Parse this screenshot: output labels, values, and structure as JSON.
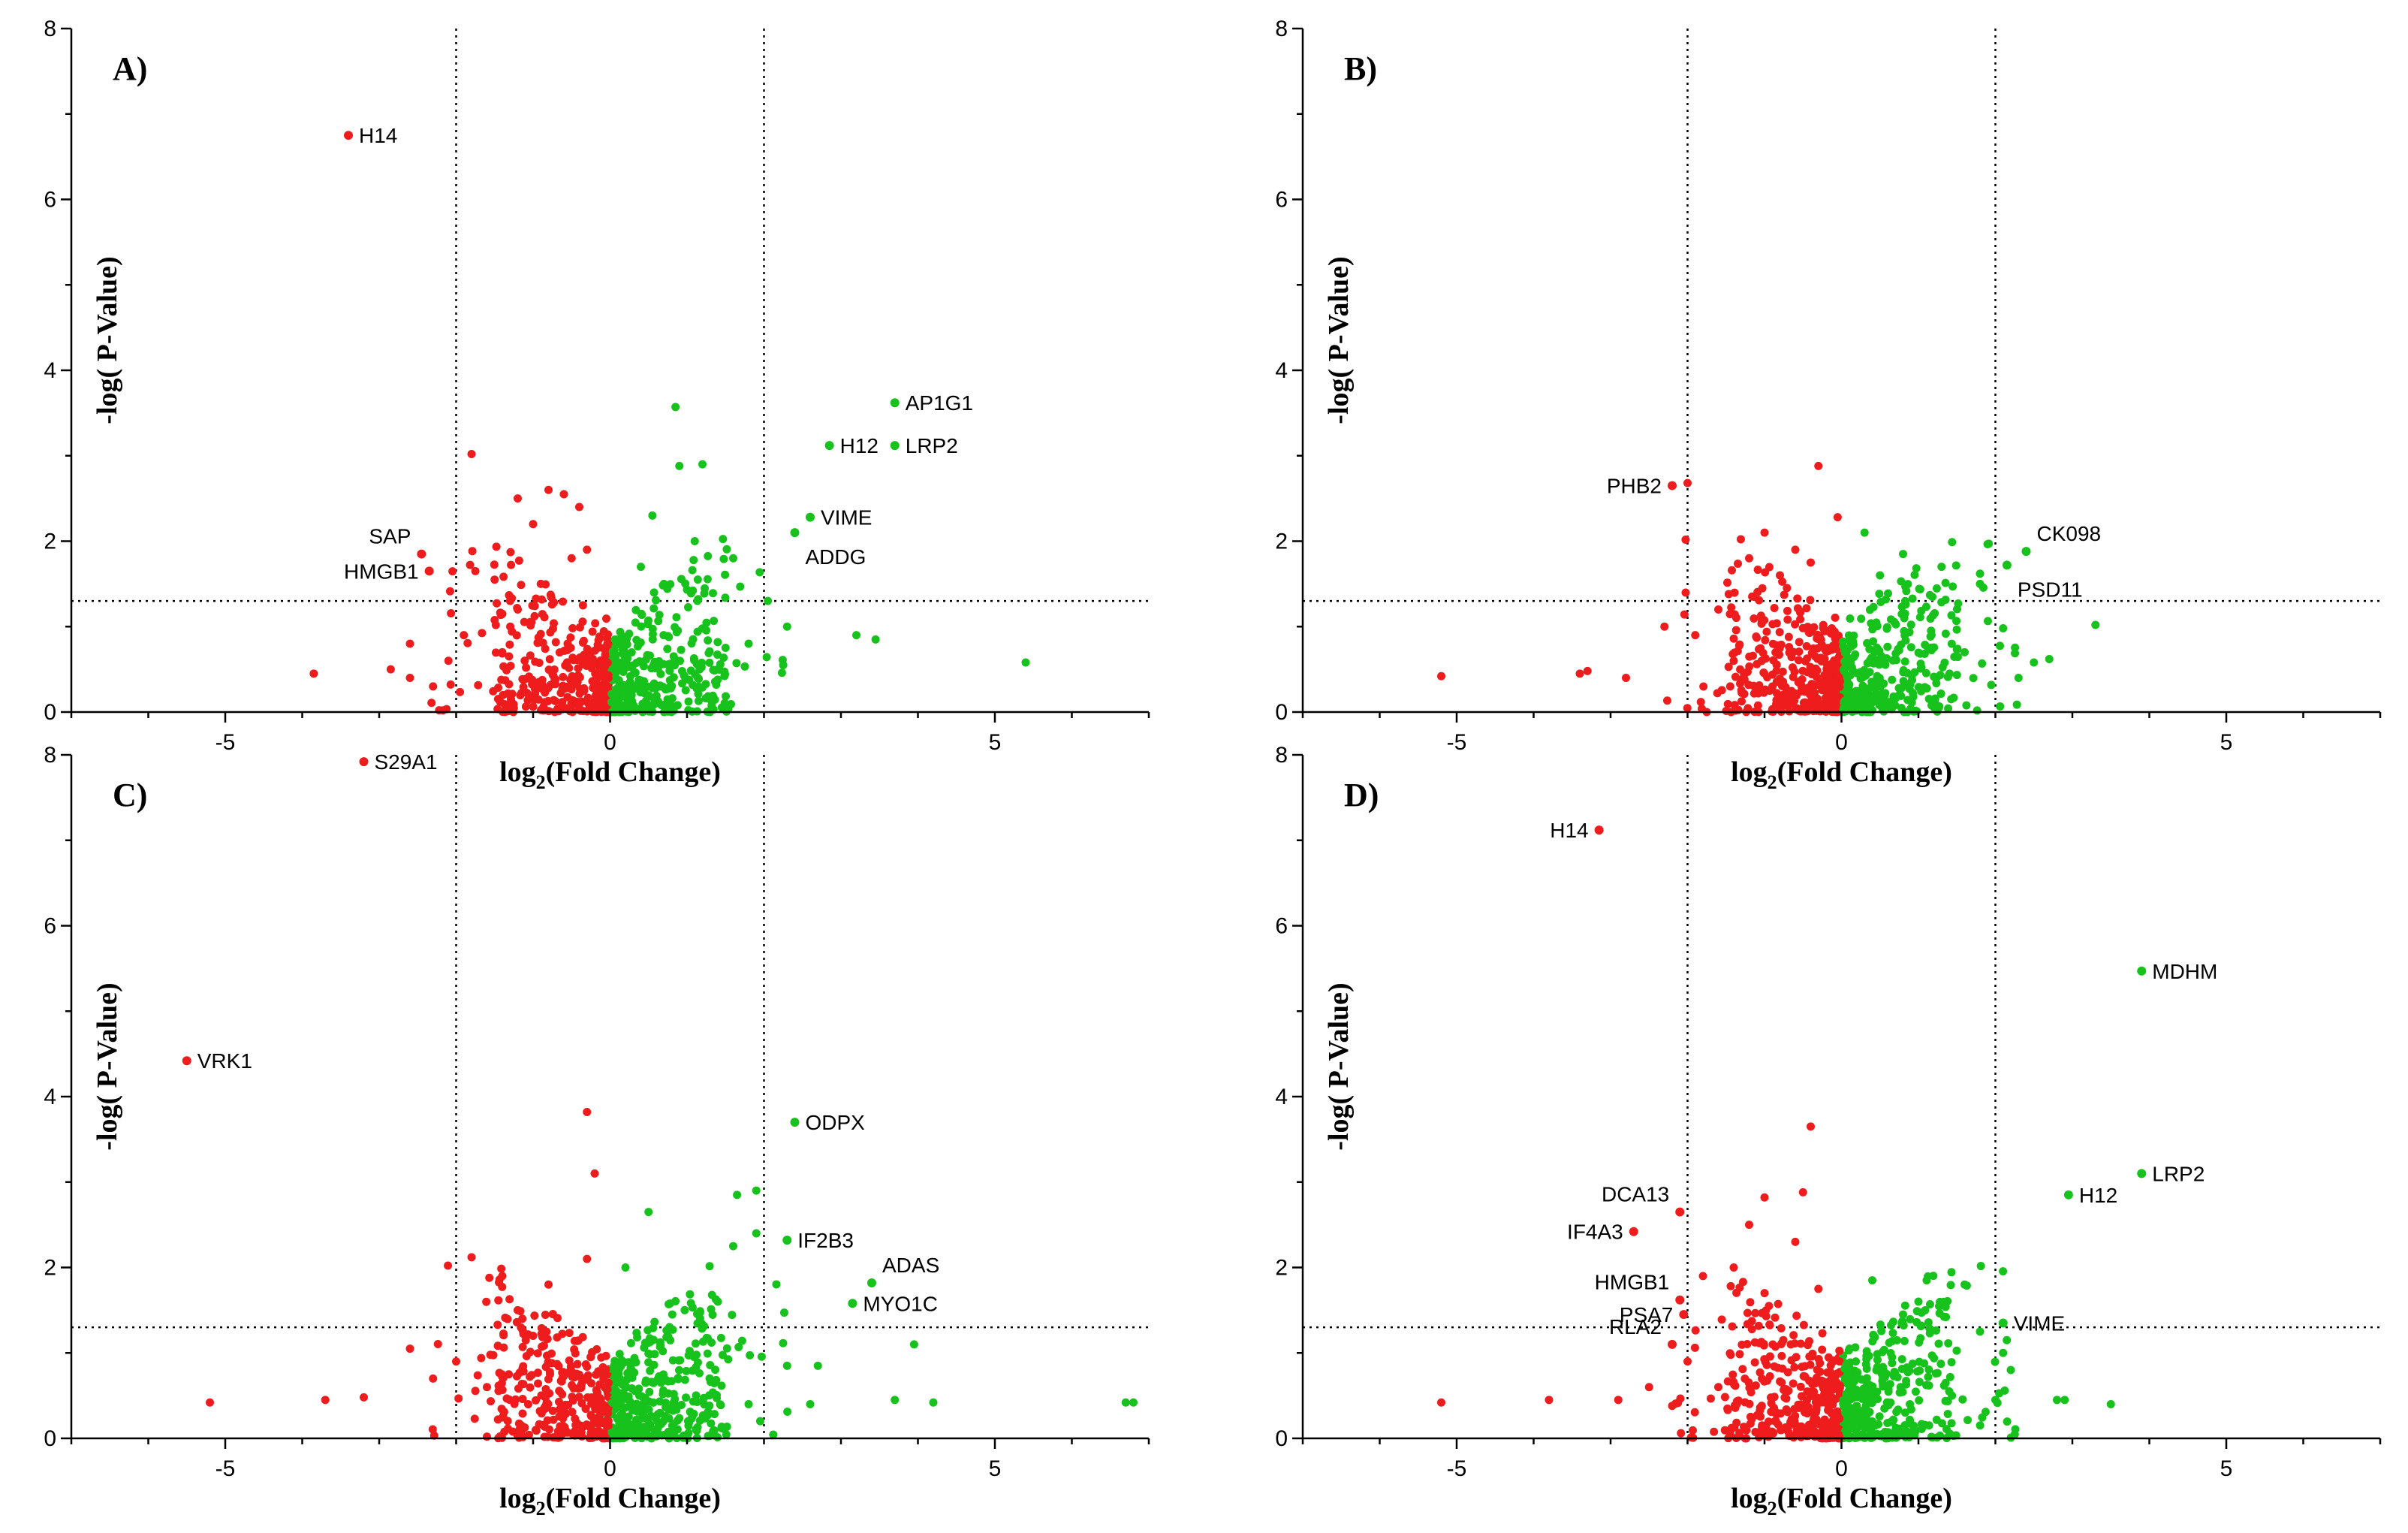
{
  "figure": {
    "description_free": true
  },
  "colors": {
    "up": "#16c21b",
    "down": "#ee1c1c",
    "axis": "#000000",
    "threshold": "#000000"
  },
  "chart_data": [
    {
      "type": "scatter",
      "panel": "A)",
      "xlabel_base": "log",
      "xlabel_sub": "2",
      "xlabel_rest": "(Fold Change)",
      "ylabel": "-log( P-Value)",
      "xlim": [
        -7,
        7
      ],
      "ylim": [
        0,
        8
      ],
      "xticks": [
        -5,
        0,
        5
      ],
      "yticks": [
        0,
        2,
        4,
        6,
        8
      ],
      "thresholds": {
        "x": [
          -2,
          2
        ],
        "y": 1.3
      },
      "labeled_points": [
        {
          "label": "H14",
          "x": -3.4,
          "y": 6.75,
          "color": "down",
          "side": "right"
        },
        {
          "label": "SAP",
          "x": -2.45,
          "y": 1.85,
          "color": "down",
          "side": "left-up"
        },
        {
          "label": "HMGB1",
          "x": -2.35,
          "y": 1.65,
          "color": "down",
          "side": "left"
        },
        {
          "label": "AP1G1",
          "x": 3.7,
          "y": 3.62,
          "color": "up",
          "side": "right"
        },
        {
          "label": "H12",
          "x": 2.85,
          "y": 3.12,
          "color": "up",
          "side": "right"
        },
        {
          "label": "LRP2",
          "x": 3.7,
          "y": 3.12,
          "color": "up",
          "side": "right"
        },
        {
          "label": "VIME",
          "x": 2.6,
          "y": 2.28,
          "color": "up",
          "side": "right"
        },
        {
          "label": "ADDG",
          "x": 2.4,
          "y": 2.1,
          "color": "up",
          "side": "right-down"
        }
      ],
      "other_points": [
        {
          "x": -3.85,
          "y": 0.45,
          "c": "down"
        },
        {
          "x": -2.85,
          "y": 0.5,
          "c": "down"
        },
        {
          "x": -2.6,
          "y": 0.4,
          "c": "down"
        },
        {
          "x": -2.6,
          "y": 0.8,
          "c": "down"
        },
        {
          "x": -1.8,
          "y": 3.02,
          "c": "down"
        },
        {
          "x": -1.75,
          "y": 1.65,
          "c": "down"
        },
        {
          "x": -1.5,
          "y": 1.55,
          "c": "down"
        },
        {
          "x": -1.2,
          "y": 2.5,
          "c": "down"
        },
        {
          "x": -0.8,
          "y": 2.6,
          "c": "down"
        },
        {
          "x": -0.6,
          "y": 2.55,
          "c": "down"
        },
        {
          "x": -1.0,
          "y": 2.2,
          "c": "down"
        },
        {
          "x": -0.4,
          "y": 2.4,
          "c": "down"
        },
        {
          "x": -1.2,
          "y": 1.2,
          "c": "down"
        },
        {
          "x": -0.9,
          "y": 1.5,
          "c": "down"
        },
        {
          "x": -0.5,
          "y": 1.8,
          "c": "down"
        },
        {
          "x": -0.3,
          "y": 1.9,
          "c": "down"
        },
        {
          "x": -1.9,
          "y": 0.9,
          "c": "down"
        },
        {
          "x": -2.1,
          "y": 0.6,
          "c": "down"
        },
        {
          "x": -1.4,
          "y": 0.7,
          "c": "down"
        },
        {
          "x": -2.3,
          "y": 0.3,
          "c": "down"
        },
        {
          "x": 0.85,
          "y": 3.57,
          "c": "up"
        },
        {
          "x": 0.9,
          "y": 2.88,
          "c": "up"
        },
        {
          "x": 1.2,
          "y": 2.9,
          "c": "up"
        },
        {
          "x": 0.55,
          "y": 2.3,
          "c": "up"
        },
        {
          "x": 1.1,
          "y": 2.0,
          "c": "up"
        },
        {
          "x": 1.6,
          "y": 1.8,
          "c": "up"
        },
        {
          "x": 0.4,
          "y": 1.7,
          "c": "up"
        },
        {
          "x": 0.7,
          "y": 1.5,
          "c": "up"
        },
        {
          "x": 2.05,
          "y": 1.3,
          "c": "up"
        },
        {
          "x": 2.3,
          "y": 1.0,
          "c": "up"
        },
        {
          "x": 1.8,
          "y": 0.8,
          "c": "up"
        },
        {
          "x": 3.2,
          "y": 0.9,
          "c": "up"
        },
        {
          "x": 3.45,
          "y": 0.85,
          "c": "up"
        },
        {
          "x": 5.4,
          "y": 0.58,
          "c": "up"
        },
        {
          "x": 2.25,
          "y": 0.55,
          "c": "up"
        },
        {
          "x": 1.4,
          "y": 0.5,
          "c": "up"
        }
      ]
    },
    {
      "type": "scatter",
      "panel": "B)",
      "xlabel_base": "log",
      "xlabel_sub": "2",
      "xlabel_rest": "(Fold Change)",
      "ylabel": "-log( P-Value)",
      "xlim": [
        -7,
        7
      ],
      "ylim": [
        0,
        8
      ],
      "xticks": [
        -5,
        0,
        5
      ],
      "yticks": [
        0,
        2,
        4,
        6,
        8
      ],
      "thresholds": {
        "x": [
          -2,
          2
        ],
        "y": 1.3
      },
      "labeled_points": [
        {
          "label": "PHB2",
          "x": -2.2,
          "y": 2.65,
          "color": "down",
          "side": "left"
        },
        {
          "label": "CK098",
          "x": 2.4,
          "y": 1.88,
          "color": "up",
          "side": "right-up"
        },
        {
          "label": "PSD11",
          "x": 2.15,
          "y": 1.72,
          "color": "up",
          "side": "right-down"
        }
      ],
      "other_points": [
        {
          "x": -5.2,
          "y": 0.42,
          "c": "down"
        },
        {
          "x": -3.4,
          "y": 0.45,
          "c": "down"
        },
        {
          "x": -3.3,
          "y": 0.48,
          "c": "down"
        },
        {
          "x": -2.8,
          "y": 0.4,
          "c": "down"
        },
        {
          "x": -2.3,
          "y": 1.0,
          "c": "down"
        },
        {
          "x": -2.0,
          "y": 2.68,
          "c": "down"
        },
        {
          "x": -0.3,
          "y": 2.88,
          "c": "down"
        },
        {
          "x": -0.05,
          "y": 2.28,
          "c": "down"
        },
        {
          "x": -1.0,
          "y": 2.1,
          "c": "down"
        },
        {
          "x": -0.6,
          "y": 1.9,
          "c": "down"
        },
        {
          "x": -1.2,
          "y": 1.8,
          "c": "down"
        },
        {
          "x": -1.6,
          "y": 1.2,
          "c": "down"
        },
        {
          "x": -1.9,
          "y": 0.9,
          "c": "down"
        },
        {
          "x": -0.8,
          "y": 1.6,
          "c": "down"
        },
        {
          "x": -0.4,
          "y": 1.75,
          "c": "down"
        },
        {
          "x": -1.4,
          "y": 0.6,
          "c": "down"
        },
        {
          "x": 0.3,
          "y": 2.1,
          "c": "up"
        },
        {
          "x": 0.8,
          "y": 1.85,
          "c": "up"
        },
        {
          "x": 1.3,
          "y": 1.7,
          "c": "up"
        },
        {
          "x": 1.8,
          "y": 1.62,
          "c": "up"
        },
        {
          "x": 1.8,
          "y": 1.5,
          "c": "up"
        },
        {
          "x": 0.5,
          "y": 1.6,
          "c": "up"
        },
        {
          "x": 3.3,
          "y": 1.02,
          "c": "up"
        },
        {
          "x": 2.7,
          "y": 0.62,
          "c": "up"
        },
        {
          "x": 2.5,
          "y": 0.58,
          "c": "up"
        },
        {
          "x": 2.1,
          "y": 0.98,
          "c": "up"
        },
        {
          "x": 2.3,
          "y": 0.4,
          "c": "up"
        },
        {
          "x": 1.6,
          "y": 0.7,
          "c": "up"
        }
      ]
    },
    {
      "type": "scatter",
      "panel": "C)",
      "xlabel_base": "log",
      "xlabel_sub": "2",
      "xlabel_rest": "(Fold Change)",
      "ylabel": "-log( P-Value)",
      "xlim": [
        -7,
        7
      ],
      "ylim": [
        0,
        8
      ],
      "xticks": [
        -5,
        0,
        5
      ],
      "yticks": [
        0,
        2,
        4,
        6,
        8
      ],
      "thresholds": {
        "x": [
          -2,
          2
        ],
        "y": 1.3
      },
      "labeled_points": [
        {
          "label": "S29A1",
          "x": -3.2,
          "y": 7.92,
          "color": "down",
          "side": "right"
        },
        {
          "label": "VRK1",
          "x": -5.5,
          "y": 4.42,
          "color": "down",
          "side": "right"
        },
        {
          "label": "ODPX",
          "x": 2.4,
          "y": 3.7,
          "color": "up",
          "side": "right"
        },
        {
          "label": "IF2B3",
          "x": 2.3,
          "y": 2.32,
          "color": "up",
          "side": "right"
        },
        {
          "label": "ADAS",
          "x": 3.4,
          "y": 1.82,
          "color": "up",
          "side": "right-up"
        },
        {
          "label": "MYO1C",
          "x": 3.15,
          "y": 1.58,
          "color": "up",
          "side": "right"
        }
      ],
      "other_points": [
        {
          "x": -5.2,
          "y": 0.42,
          "c": "down"
        },
        {
          "x": -3.7,
          "y": 0.45,
          "c": "down"
        },
        {
          "x": -3.2,
          "y": 0.48,
          "c": "down"
        },
        {
          "x": -2.6,
          "y": 1.05,
          "c": "down"
        },
        {
          "x": -0.3,
          "y": 3.82,
          "c": "down"
        },
        {
          "x": -0.2,
          "y": 3.1,
          "c": "down"
        },
        {
          "x": -1.8,
          "y": 2.12,
          "c": "down"
        },
        {
          "x": -1.4,
          "y": 1.9,
          "c": "down"
        },
        {
          "x": -0.3,
          "y": 2.1,
          "c": "down"
        },
        {
          "x": -0.8,
          "y": 1.8,
          "c": "down"
        },
        {
          "x": -1.2,
          "y": 1.5,
          "c": "down"
        },
        {
          "x": -2.0,
          "y": 0.9,
          "c": "down"
        },
        {
          "x": -2.3,
          "y": 0.7,
          "c": "down"
        },
        {
          "x": -1.6,
          "y": 0.6,
          "c": "down"
        },
        {
          "x": -1.6,
          "y": 0.02,
          "c": "down"
        },
        {
          "x": -1.0,
          "y": 1.2,
          "c": "down"
        },
        {
          "x": 0.5,
          "y": 2.65,
          "c": "up"
        },
        {
          "x": 1.9,
          "y": 2.9,
          "c": "up"
        },
        {
          "x": 1.65,
          "y": 2.85,
          "c": "up"
        },
        {
          "x": 1.9,
          "y": 2.4,
          "c": "up"
        },
        {
          "x": 1.6,
          "y": 2.25,
          "c": "up"
        },
        {
          "x": 0.2,
          "y": 2.0,
          "c": "up"
        },
        {
          "x": 1.4,
          "y": 1.6,
          "c": "up"
        },
        {
          "x": 3.95,
          "y": 1.1,
          "c": "up"
        },
        {
          "x": 2.7,
          "y": 0.85,
          "c": "up"
        },
        {
          "x": 2.3,
          "y": 0.85,
          "c": "up"
        },
        {
          "x": 3.7,
          "y": 0.45,
          "c": "up"
        },
        {
          "x": 4.2,
          "y": 0.42,
          "c": "up"
        },
        {
          "x": 6.7,
          "y": 0.42,
          "c": "up"
        },
        {
          "x": 6.8,
          "y": 0.42,
          "c": "up"
        },
        {
          "x": 2.6,
          "y": 0.4,
          "c": "up"
        },
        {
          "x": 1.8,
          "y": 0.4,
          "c": "up"
        }
      ]
    },
    {
      "type": "scatter",
      "panel": "D)",
      "xlabel_base": "log",
      "xlabel_sub": "2",
      "xlabel_rest": "(Fold Change)",
      "ylabel": "-log( P-Value)",
      "xlim": [
        -7,
        7
      ],
      "ylim": [
        0,
        8
      ],
      "xticks": [
        -5,
        0,
        5
      ],
      "yticks": [
        0,
        2,
        4,
        6,
        8
      ],
      "thresholds": {
        "x": [
          -2,
          2
        ],
        "y": 1.3
      },
      "labeled_points": [
        {
          "label": "H14",
          "x": -3.15,
          "y": 7.12,
          "color": "down",
          "side": "left"
        },
        {
          "label": "MDHM",
          "x": 3.9,
          "y": 5.47,
          "color": "up",
          "side": "right"
        },
        {
          "label": "LRP2",
          "x": 3.9,
          "y": 3.1,
          "color": "up",
          "side": "right"
        },
        {
          "label": "H12",
          "x": 2.95,
          "y": 2.85,
          "color": "up",
          "side": "right"
        },
        {
          "label": "DCA13",
          "x": -2.1,
          "y": 2.65,
          "color": "down",
          "side": "left-up"
        },
        {
          "label": "IF4A3",
          "x": -2.7,
          "y": 2.42,
          "color": "down",
          "side": "left"
        },
        {
          "label": "VIME",
          "x": 2.1,
          "y": 1.35,
          "color": "up",
          "side": "right"
        },
        {
          "label": "HMGB1",
          "x": -2.1,
          "y": 1.62,
          "color": "down",
          "side": "left-up"
        },
        {
          "label": "PSA7",
          "x": -2.05,
          "y": 1.45,
          "color": "down",
          "side": "left"
        },
        {
          "label": "RLA2",
          "x": -2.2,
          "y": 1.1,
          "color": "down",
          "side": "left-up"
        }
      ],
      "other_points": [
        {
          "x": -5.2,
          "y": 0.42,
          "c": "down"
        },
        {
          "x": -3.8,
          "y": 0.45,
          "c": "down"
        },
        {
          "x": -2.9,
          "y": 0.45,
          "c": "down"
        },
        {
          "x": -2.5,
          "y": 0.6,
          "c": "down"
        },
        {
          "x": -0.4,
          "y": 3.65,
          "c": "down"
        },
        {
          "x": -1.0,
          "y": 2.82,
          "c": "down"
        },
        {
          "x": -0.5,
          "y": 2.88,
          "c": "down"
        },
        {
          "x": -1.2,
          "y": 2.5,
          "c": "down"
        },
        {
          "x": -0.6,
          "y": 2.3,
          "c": "down"
        },
        {
          "x": -1.4,
          "y": 2.0,
          "c": "down"
        },
        {
          "x": -1.8,
          "y": 1.9,
          "c": "down"
        },
        {
          "x": -1.0,
          "y": 1.7,
          "c": "down"
        },
        {
          "x": -0.3,
          "y": 1.75,
          "c": "down"
        },
        {
          "x": -2.0,
          "y": 0.9,
          "c": "down"
        },
        {
          "x": -1.6,
          "y": 0.6,
          "c": "down"
        },
        {
          "x": -2.2,
          "y": 0.38,
          "c": "down"
        },
        {
          "x": 0.4,
          "y": 1.85,
          "c": "up"
        },
        {
          "x": 1.6,
          "y": 1.8,
          "c": "up"
        },
        {
          "x": 1.0,
          "y": 1.6,
          "c": "up"
        },
        {
          "x": 0.8,
          "y": 1.45,
          "c": "up"
        },
        {
          "x": 1.8,
          "y": 1.25,
          "c": "up"
        },
        {
          "x": 2.1,
          "y": 1.0,
          "c": "up"
        },
        {
          "x": 2.2,
          "y": 0.8,
          "c": "up"
        },
        {
          "x": 2.8,
          "y": 0.45,
          "c": "up"
        },
        {
          "x": 2.9,
          "y": 0.45,
          "c": "up"
        },
        {
          "x": 3.5,
          "y": 0.4,
          "c": "up"
        },
        {
          "x": 2.0,
          "y": 0.45,
          "c": "up"
        },
        {
          "x": 1.4,
          "y": 0.55,
          "c": "up"
        }
      ]
    }
  ]
}
